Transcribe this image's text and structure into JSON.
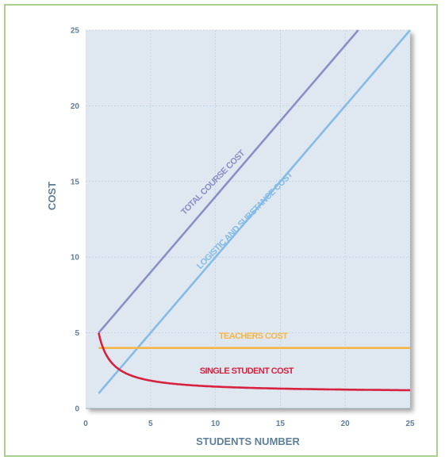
{
  "chart_data": {
    "type": "line",
    "title": "",
    "xlabel": "STUDENTS NUMBER",
    "ylabel": "COST",
    "xlim": [
      0,
      25
    ],
    "ylim": [
      0,
      25
    ],
    "x_ticks": [
      0,
      5,
      10,
      15,
      20,
      25
    ],
    "y_ticks": [
      0,
      5,
      10,
      15,
      20,
      25
    ],
    "grid": true,
    "series": [
      {
        "name": "TOTAL COURSE COST",
        "color": "#8c8fc6",
        "x": [
          1,
          21
        ],
        "y": [
          5,
          25
        ]
      },
      {
        "name": "LOGISTIC AND SUBSTANCE COST",
        "color": "#85bbe5",
        "x": [
          1,
          25
        ],
        "y": [
          1,
          25
        ]
      },
      {
        "name": "TEACHERS COST",
        "color": "#f5b547",
        "x": [
          1,
          25
        ],
        "y": [
          4,
          4
        ]
      },
      {
        "name": "SINGLE STUDENT COST",
        "color": "#d6213f",
        "x": [
          1,
          2,
          3,
          4,
          5,
          6,
          8,
          10,
          15,
          20,
          25
        ],
        "y": [
          5,
          3,
          2.33,
          2,
          1.8,
          1.67,
          1.5,
          1.4,
          1.27,
          1.2,
          1.16
        ]
      }
    ]
  },
  "colors": {
    "plot_background": "#dfe8f0",
    "axis_text": "#5e7f99",
    "frame_border": "#a9d18e"
  }
}
